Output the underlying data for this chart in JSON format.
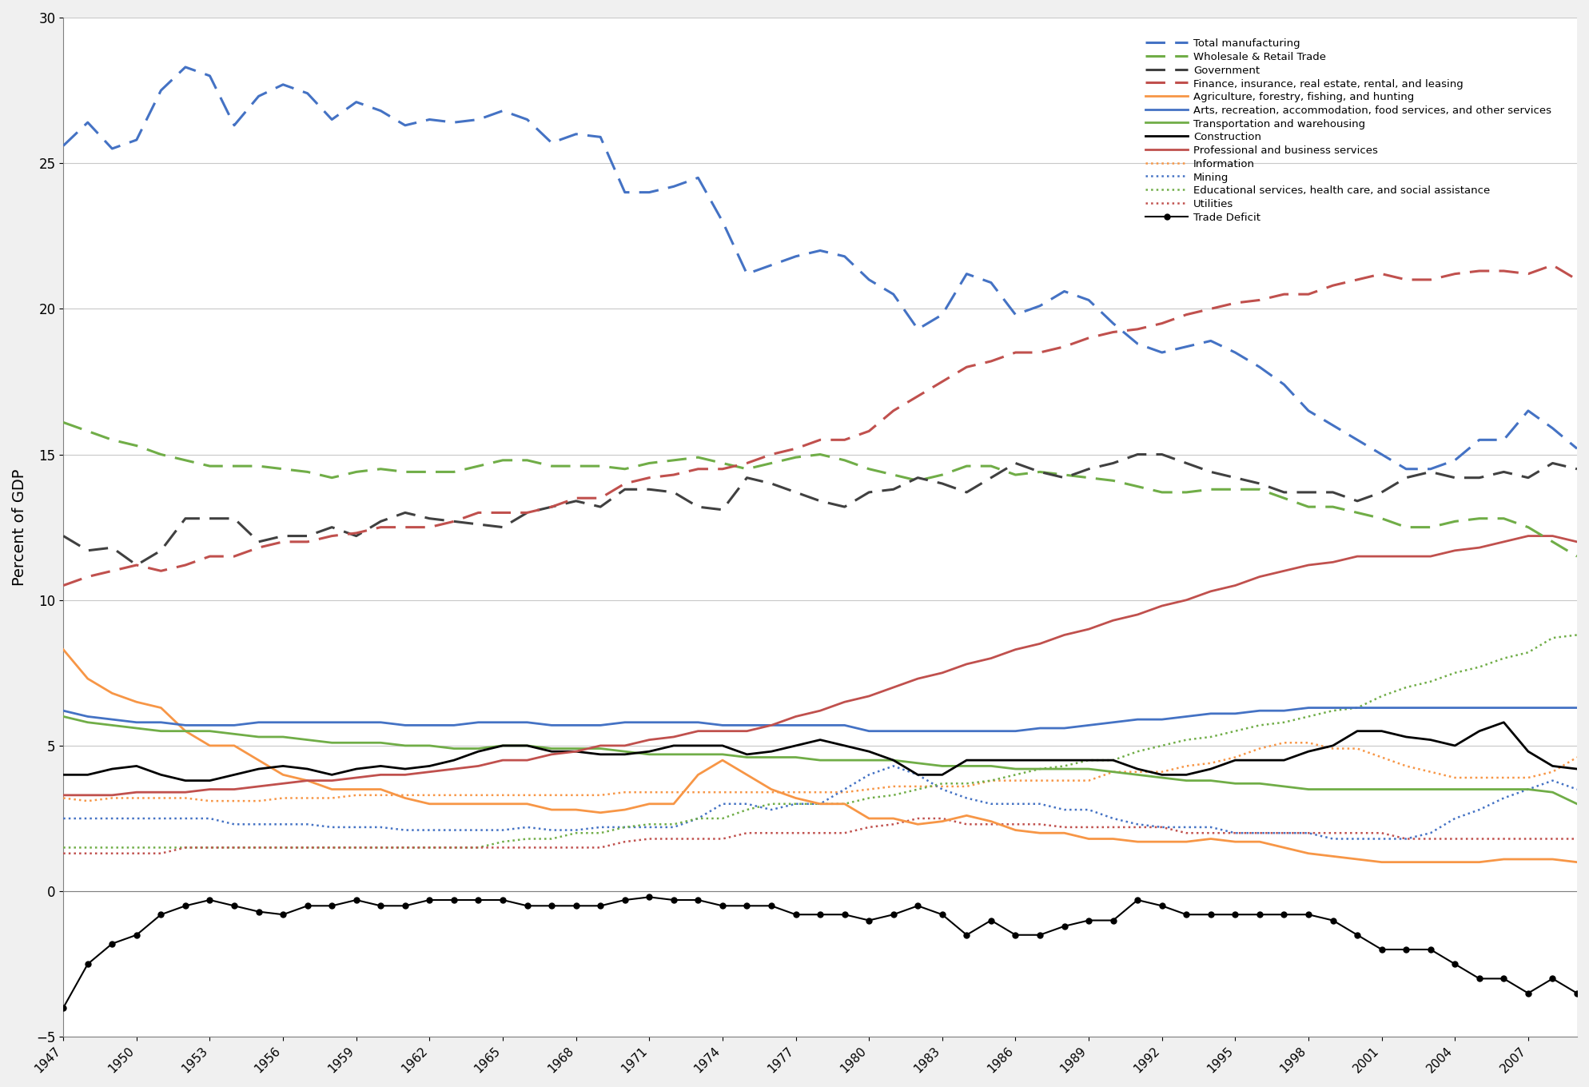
{
  "years": [
    1947,
    1948,
    1949,
    1950,
    1951,
    1952,
    1953,
    1954,
    1955,
    1956,
    1957,
    1958,
    1959,
    1960,
    1961,
    1962,
    1963,
    1964,
    1965,
    1966,
    1967,
    1968,
    1969,
    1970,
    1971,
    1972,
    1973,
    1974,
    1975,
    1976,
    1977,
    1978,
    1979,
    1980,
    1981,
    1982,
    1983,
    1984,
    1985,
    1986,
    1987,
    1988,
    1989,
    1990,
    1991,
    1992,
    1993,
    1994,
    1995,
    1996,
    1997,
    1998,
    1999,
    2000,
    2001,
    2002,
    2003,
    2004,
    2005,
    2006,
    2007,
    2008,
    2009
  ],
  "total_manufacturing": [
    25.6,
    26.4,
    25.5,
    25.8,
    27.5,
    28.3,
    28.0,
    26.3,
    27.3,
    27.7,
    27.4,
    26.5,
    27.1,
    26.8,
    26.3,
    26.5,
    26.4,
    26.5,
    26.8,
    26.5,
    25.7,
    26.0,
    25.9,
    24.0,
    24.0,
    24.2,
    24.5,
    23.0,
    21.2,
    21.5,
    21.8,
    22.0,
    21.8,
    21.0,
    20.5,
    19.3,
    19.8,
    21.2,
    20.9,
    19.8,
    20.1,
    20.6,
    20.3,
    19.5,
    18.8,
    18.5,
    18.7,
    18.9,
    18.5,
    18.0,
    17.4,
    16.5,
    16.0,
    15.5,
    15.0,
    14.5,
    14.5,
    14.8,
    15.5,
    15.5,
    16.5,
    15.9,
    15.2
  ],
  "wholesale_retail": [
    16.1,
    15.8,
    15.5,
    15.3,
    15.0,
    14.8,
    14.6,
    14.6,
    14.6,
    14.5,
    14.4,
    14.2,
    14.4,
    14.5,
    14.4,
    14.4,
    14.4,
    14.6,
    14.8,
    14.8,
    14.6,
    14.6,
    14.6,
    14.5,
    14.7,
    14.8,
    14.9,
    14.7,
    14.5,
    14.7,
    14.9,
    15.0,
    14.8,
    14.5,
    14.3,
    14.1,
    14.3,
    14.6,
    14.6,
    14.3,
    14.4,
    14.3,
    14.2,
    14.1,
    13.9,
    13.7,
    13.7,
    13.8,
    13.8,
    13.8,
    13.5,
    13.2,
    13.2,
    13.0,
    12.8,
    12.5,
    12.5,
    12.7,
    12.8,
    12.8,
    12.5,
    12.0,
    11.5
  ],
  "government": [
    12.2,
    11.7,
    11.8,
    11.2,
    11.7,
    12.8,
    12.8,
    12.8,
    12.0,
    12.2,
    12.2,
    12.5,
    12.2,
    12.7,
    13.0,
    12.8,
    12.7,
    12.6,
    12.5,
    13.0,
    13.2,
    13.4,
    13.2,
    13.8,
    13.8,
    13.7,
    13.2,
    13.1,
    14.2,
    14.0,
    13.7,
    13.4,
    13.2,
    13.7,
    13.8,
    14.2,
    14.0,
    13.7,
    14.2,
    14.7,
    14.4,
    14.2,
    14.5,
    14.7,
    15.0,
    15.0,
    14.7,
    14.4,
    14.2,
    14.0,
    13.7,
    13.7,
    13.7,
    13.4,
    13.7,
    14.2,
    14.4,
    14.2,
    14.2,
    14.4,
    14.2,
    14.7,
    14.5
  ],
  "finance_insurance": [
    10.5,
    10.8,
    11.0,
    11.2,
    11.0,
    11.2,
    11.5,
    11.5,
    11.8,
    12.0,
    12.0,
    12.2,
    12.3,
    12.5,
    12.5,
    12.5,
    12.7,
    13.0,
    13.0,
    13.0,
    13.2,
    13.5,
    13.5,
    14.0,
    14.2,
    14.3,
    14.5,
    14.5,
    14.7,
    15.0,
    15.2,
    15.5,
    15.5,
    15.8,
    16.5,
    17.0,
    17.5,
    18.0,
    18.2,
    18.5,
    18.5,
    18.7,
    19.0,
    19.2,
    19.3,
    19.5,
    19.8,
    20.0,
    20.2,
    20.3,
    20.5,
    20.5,
    20.8,
    21.0,
    21.2,
    21.0,
    21.0,
    21.2,
    21.3,
    21.3,
    21.2,
    21.5,
    21.0
  ],
  "agriculture": [
    8.3,
    7.3,
    6.8,
    6.5,
    6.3,
    5.5,
    5.0,
    5.0,
    4.5,
    4.0,
    3.8,
    3.5,
    3.5,
    3.5,
    3.2,
    3.0,
    3.0,
    3.0,
    3.0,
    3.0,
    2.8,
    2.8,
    2.7,
    2.8,
    3.0,
    3.0,
    4.0,
    4.5,
    4.0,
    3.5,
    3.2,
    3.0,
    3.0,
    2.5,
    2.5,
    2.3,
    2.4,
    2.6,
    2.4,
    2.1,
    2.0,
    2.0,
    1.8,
    1.8,
    1.7,
    1.7,
    1.7,
    1.8,
    1.7,
    1.7,
    1.5,
    1.3,
    1.2,
    1.1,
    1.0,
    1.0,
    1.0,
    1.0,
    1.0,
    1.1,
    1.1,
    1.1,
    1.0
  ],
  "arts_recreation": [
    6.2,
    6.0,
    5.9,
    5.8,
    5.8,
    5.7,
    5.7,
    5.7,
    5.8,
    5.8,
    5.8,
    5.8,
    5.8,
    5.8,
    5.7,
    5.7,
    5.7,
    5.8,
    5.8,
    5.8,
    5.7,
    5.7,
    5.7,
    5.8,
    5.8,
    5.8,
    5.8,
    5.7,
    5.7,
    5.7,
    5.7,
    5.7,
    5.7,
    5.5,
    5.5,
    5.5,
    5.5,
    5.5,
    5.5,
    5.5,
    5.6,
    5.6,
    5.7,
    5.8,
    5.9,
    5.9,
    6.0,
    6.1,
    6.1,
    6.2,
    6.2,
    6.3,
    6.3,
    6.3,
    6.3,
    6.3,
    6.3,
    6.3,
    6.3,
    6.3,
    6.3,
    6.3,
    6.3
  ],
  "transportation": [
    6.0,
    5.8,
    5.7,
    5.6,
    5.5,
    5.5,
    5.5,
    5.4,
    5.3,
    5.3,
    5.2,
    5.1,
    5.1,
    5.1,
    5.0,
    5.0,
    4.9,
    4.9,
    5.0,
    5.0,
    4.9,
    4.9,
    4.9,
    4.8,
    4.7,
    4.7,
    4.7,
    4.7,
    4.6,
    4.6,
    4.6,
    4.5,
    4.5,
    4.5,
    4.5,
    4.4,
    4.3,
    4.3,
    4.3,
    4.2,
    4.2,
    4.2,
    4.2,
    4.1,
    4.0,
    3.9,
    3.8,
    3.8,
    3.7,
    3.7,
    3.6,
    3.5,
    3.5,
    3.5,
    3.5,
    3.5,
    3.5,
    3.5,
    3.5,
    3.5,
    3.5,
    3.4,
    3.0
  ],
  "construction": [
    4.0,
    4.0,
    4.2,
    4.3,
    4.0,
    3.8,
    3.8,
    4.0,
    4.2,
    4.3,
    4.2,
    4.0,
    4.2,
    4.3,
    4.2,
    4.3,
    4.5,
    4.8,
    5.0,
    5.0,
    4.8,
    4.8,
    4.7,
    4.7,
    4.8,
    5.0,
    5.0,
    5.0,
    4.7,
    4.8,
    5.0,
    5.2,
    5.0,
    4.8,
    4.5,
    4.0,
    4.0,
    4.5,
    4.5,
    4.5,
    4.5,
    4.5,
    4.5,
    4.5,
    4.2,
    4.0,
    4.0,
    4.2,
    4.5,
    4.5,
    4.5,
    4.8,
    5.0,
    5.5,
    5.5,
    5.3,
    5.2,
    5.0,
    5.5,
    5.8,
    4.8,
    4.3,
    4.2
  ],
  "professional_business": [
    3.3,
    3.3,
    3.3,
    3.4,
    3.4,
    3.4,
    3.5,
    3.5,
    3.6,
    3.7,
    3.8,
    3.8,
    3.9,
    4.0,
    4.0,
    4.1,
    4.2,
    4.3,
    4.5,
    4.5,
    4.7,
    4.8,
    5.0,
    5.0,
    5.2,
    5.3,
    5.5,
    5.5,
    5.5,
    5.7,
    6.0,
    6.2,
    6.5,
    6.7,
    7.0,
    7.3,
    7.5,
    7.8,
    8.0,
    8.3,
    8.5,
    8.8,
    9.0,
    9.3,
    9.5,
    9.8,
    10.0,
    10.3,
    10.5,
    10.8,
    11.0,
    11.2,
    11.3,
    11.5,
    11.5,
    11.5,
    11.5,
    11.7,
    11.8,
    12.0,
    12.2,
    12.2,
    12.0
  ],
  "information": [
    3.2,
    3.1,
    3.2,
    3.2,
    3.2,
    3.2,
    3.1,
    3.1,
    3.1,
    3.2,
    3.2,
    3.2,
    3.3,
    3.3,
    3.3,
    3.3,
    3.3,
    3.3,
    3.3,
    3.3,
    3.3,
    3.3,
    3.3,
    3.4,
    3.4,
    3.4,
    3.4,
    3.4,
    3.4,
    3.4,
    3.4,
    3.4,
    3.4,
    3.5,
    3.6,
    3.6,
    3.6,
    3.6,
    3.8,
    3.8,
    3.8,
    3.8,
    3.8,
    4.1,
    4.1,
    4.1,
    4.3,
    4.4,
    4.6,
    4.9,
    5.1,
    5.1,
    4.9,
    4.9,
    4.6,
    4.3,
    4.1,
    3.9,
    3.9,
    3.9,
    3.9,
    4.1,
    4.6
  ],
  "mining": [
    2.5,
    2.5,
    2.5,
    2.5,
    2.5,
    2.5,
    2.5,
    2.3,
    2.3,
    2.3,
    2.3,
    2.2,
    2.2,
    2.2,
    2.1,
    2.1,
    2.1,
    2.1,
    2.1,
    2.2,
    2.1,
    2.1,
    2.2,
    2.2,
    2.2,
    2.2,
    2.5,
    3.0,
    3.0,
    2.8,
    3.0,
    3.0,
    3.5,
    4.0,
    4.3,
    4.0,
    3.5,
    3.2,
    3.0,
    3.0,
    3.0,
    2.8,
    2.8,
    2.5,
    2.3,
    2.2,
    2.2,
    2.2,
    2.0,
    2.0,
    2.0,
    2.0,
    1.8,
    1.8,
    1.8,
    1.8,
    2.0,
    2.5,
    2.8,
    3.2,
    3.5,
    3.8,
    3.5
  ],
  "educational_health": [
    1.5,
    1.5,
    1.5,
    1.5,
    1.5,
    1.5,
    1.5,
    1.5,
    1.5,
    1.5,
    1.5,
    1.5,
    1.5,
    1.5,
    1.5,
    1.5,
    1.5,
    1.5,
    1.7,
    1.8,
    1.8,
    2.0,
    2.0,
    2.2,
    2.3,
    2.3,
    2.5,
    2.5,
    2.8,
    3.0,
    3.0,
    3.0,
    3.0,
    3.2,
    3.3,
    3.5,
    3.7,
    3.7,
    3.8,
    4.0,
    4.2,
    4.3,
    4.5,
    4.5,
    4.8,
    5.0,
    5.2,
    5.3,
    5.5,
    5.7,
    5.8,
    6.0,
    6.2,
    6.3,
    6.7,
    7.0,
    7.2,
    7.5,
    7.7,
    8.0,
    8.2,
    8.7,
    8.8
  ],
  "utilities": [
    1.3,
    1.3,
    1.3,
    1.3,
    1.3,
    1.5,
    1.5,
    1.5,
    1.5,
    1.5,
    1.5,
    1.5,
    1.5,
    1.5,
    1.5,
    1.5,
    1.5,
    1.5,
    1.5,
    1.5,
    1.5,
    1.5,
    1.5,
    1.7,
    1.8,
    1.8,
    1.8,
    1.8,
    2.0,
    2.0,
    2.0,
    2.0,
    2.0,
    2.2,
    2.3,
    2.5,
    2.5,
    2.3,
    2.3,
    2.3,
    2.3,
    2.2,
    2.2,
    2.2,
    2.2,
    2.2,
    2.0,
    2.0,
    2.0,
    2.0,
    2.0,
    2.0,
    2.0,
    2.0,
    2.0,
    1.8,
    1.8,
    1.8,
    1.8,
    1.8,
    1.8,
    1.8,
    1.8
  ],
  "trade_deficit": [
    -4.0,
    -2.5,
    -1.8,
    -1.5,
    -0.8,
    -0.5,
    -0.3,
    -0.5,
    -0.7,
    -0.8,
    -0.5,
    -0.5,
    -0.3,
    -0.5,
    -0.5,
    -0.3,
    -0.3,
    -0.3,
    -0.3,
    -0.5,
    -0.5,
    -0.5,
    -0.5,
    -0.3,
    -0.2,
    -0.3,
    -0.3,
    -0.5,
    -0.5,
    -0.5,
    -0.8,
    -0.8,
    -0.8,
    -1.0,
    -0.8,
    -0.5,
    -0.8,
    -1.5,
    -1.0,
    -1.5,
    -1.5,
    -1.2,
    -1.0,
    -1.0,
    -0.3,
    -0.5,
    -0.8,
    -0.8,
    -0.8,
    -0.8,
    -0.8,
    -0.8,
    -1.0,
    -1.5,
    -2.0,
    -2.0,
    -2.0,
    -2.5,
    -3.0,
    -3.0,
    -3.5,
    -3.0,
    -3.5
  ],
  "ylabel": "Percent of GDP",
  "ylim": [
    -5,
    30
  ],
  "yticks": [
    -5,
    0,
    5,
    10,
    15,
    20,
    25,
    30
  ],
  "bg_color": "#f0f0f0",
  "plot_bg_color": "#ffffff"
}
